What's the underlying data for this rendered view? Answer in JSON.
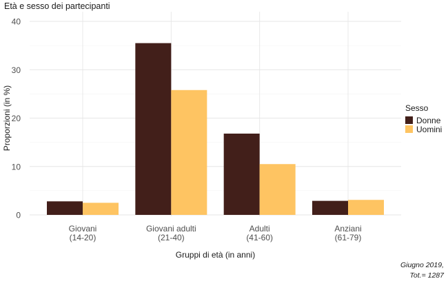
{
  "chart_data": {
    "type": "bar",
    "title": "Età e sesso dei partecipanti",
    "xlabel": "Gruppi di età (in anni)",
    "ylabel": "Proporzioni (in %)",
    "ylim": [
      0,
      40
    ],
    "yticks": [
      0,
      10,
      20,
      30,
      40
    ],
    "categories": [
      [
        "Giovani",
        "(14-20)"
      ],
      [
        "Giovani adulti",
        "(21-40)"
      ],
      [
        "Adulti",
        "(41-60)"
      ],
      [
        "Anziani",
        "(61-79)"
      ]
    ],
    "series": [
      {
        "name": "Donne",
        "color": "#421f1a",
        "values": [
          2.8,
          35.5,
          16.8,
          2.9
        ]
      },
      {
        "name": "Uomini",
        "color": "#fec462",
        "values": [
          2.5,
          25.8,
          10.5,
          3.1
        ]
      }
    ],
    "legend": {
      "title": "Sesso",
      "position": "right"
    },
    "grid": true,
    "caption": [
      "Giugno 2019,",
      "Tot.= 1287"
    ]
  }
}
